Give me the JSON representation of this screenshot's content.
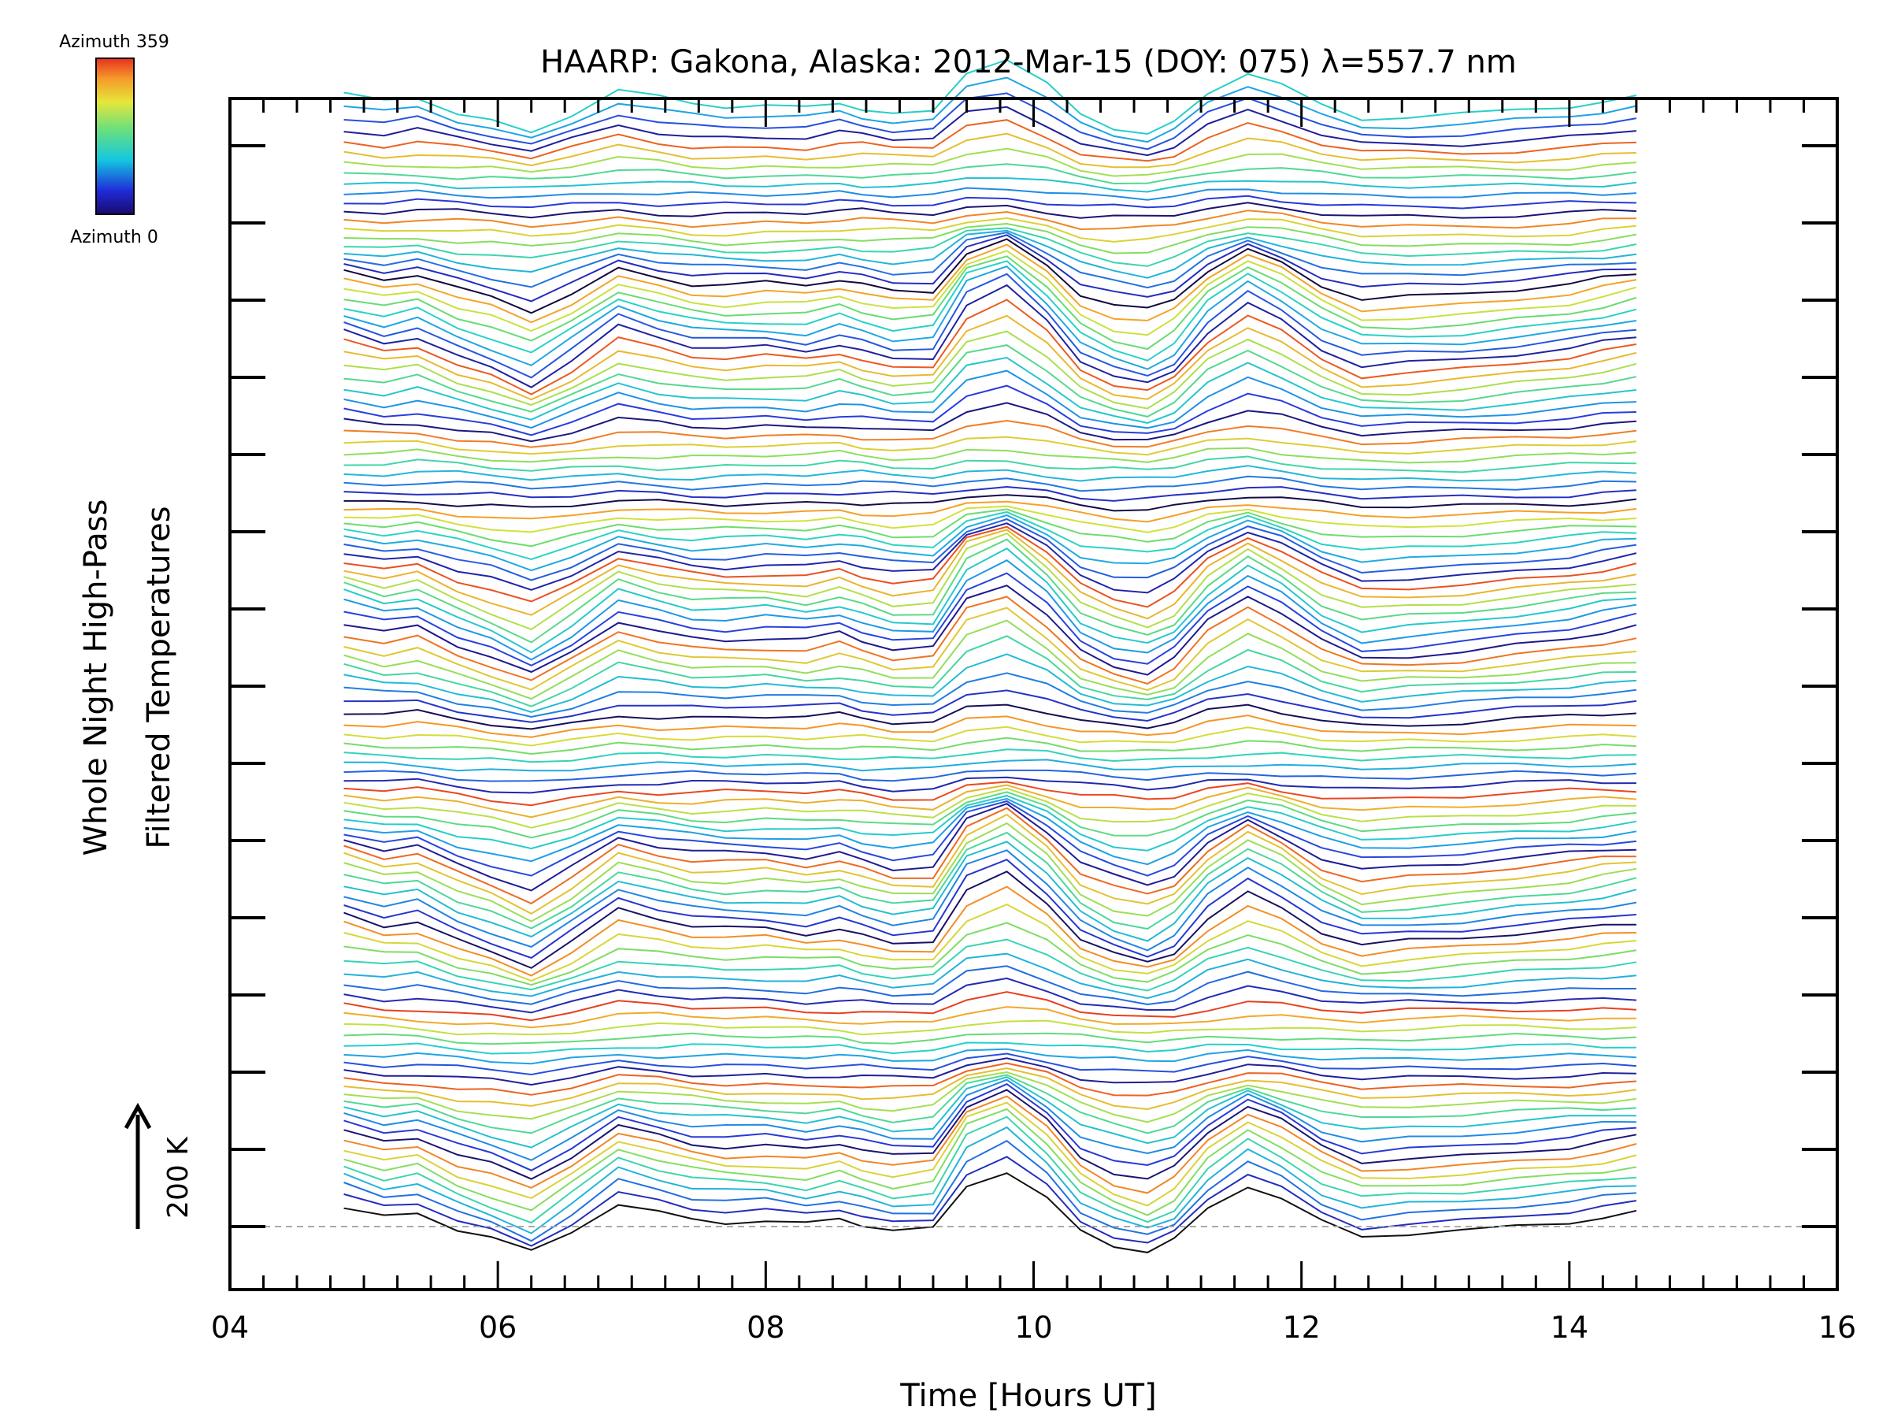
{
  "chart_data": {
    "type": "line",
    "title": "HAARP: Gakona,  Alaska: 2012-Mar-15 (DOY: 075) λ=557.7 nm",
    "xlabel": "Time [Hours UT]",
    "ylabel_line1": "Whole Night High-Pass",
    "ylabel_line2": "Filtered Temperatures",
    "xlim": [
      4,
      16
    ],
    "x_ticks": [
      4,
      6,
      8,
      10,
      12,
      14,
      16
    ],
    "x_tick_labels": [
      "04",
      "06",
      "08",
      "10",
      "12",
      "14",
      "16"
    ],
    "x_minor_step": 0.25,
    "y_unit_label": "200 K",
    "y_scale_bar_kelvin": 200,
    "y_minor_tick_count": 15,
    "baseline_dashed": true,
    "n_traces": 120,
    "trace_offset": "stacked, one trace per azimuth, colored by azimuth",
    "colorbar": {
      "label_top": "Azimuth 359",
      "label_bottom": "Azimuth 0",
      "colormap": "rainbow"
    },
    "times": [
      4.85,
      5.15,
      5.4,
      5.7,
      5.95,
      6.25,
      6.55,
      6.9,
      7.2,
      7.45,
      7.7,
      8.0,
      8.3,
      8.55,
      8.72,
      8.95,
      9.25,
      9.5,
      9.8,
      10.1,
      10.35,
      10.6,
      10.85,
      11.05,
      11.3,
      11.6,
      11.85,
      12.15,
      12.45,
      12.8,
      13.2,
      13.6,
      14.0,
      14.25,
      14.5
    ],
    "base_profile_kelvin": [
      40,
      20,
      30,
      -5,
      -25,
      -55,
      -10,
      50,
      30,
      15,
      10,
      12,
      5,
      18,
      5,
      -10,
      -5,
      90,
      120,
      60,
      -10,
      -40,
      -55,
      -30,
      40,
      90,
      60,
      10,
      -20,
      -15,
      -10,
      0,
      10,
      20,
      30
    ]
  }
}
